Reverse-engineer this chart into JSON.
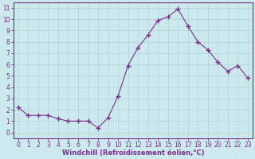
{
  "x": [
    0,
    1,
    2,
    3,
    4,
    5,
    6,
    7,
    8,
    9,
    10,
    11,
    12,
    13,
    14,
    15,
    16,
    17,
    18,
    19,
    20,
    21,
    22,
    23
  ],
  "y": [
    2.2,
    1.5,
    1.5,
    1.5,
    1.2,
    1.0,
    1.0,
    1.0,
    0.4,
    1.3,
    3.2,
    5.9,
    7.5,
    8.6,
    9.9,
    10.2,
    10.9,
    9.4,
    8.0,
    7.3,
    6.2,
    5.4,
    5.9,
    4.8
  ],
  "line_color": "#7b2d8b",
  "marker": "+",
  "marker_size": 4,
  "bg_color": "#cce9ee",
  "grid_color": "#b8d8dc",
  "xlabel": "Windchill (Refroidissement éolien,°C)",
  "ylabel_ticks": [
    0,
    1,
    2,
    3,
    4,
    5,
    6,
    7,
    8,
    9,
    10,
    11
  ],
  "xlim": [
    -0.5,
    23.5
  ],
  "ylim": [
    -0.5,
    11.5
  ],
  "xlabel_color": "#7b2d8b",
  "tick_color": "#7b2d8b",
  "spine_color": "#7b2d8b",
  "tick_fontsize": 5.5,
  "xlabel_fontsize": 6.0
}
